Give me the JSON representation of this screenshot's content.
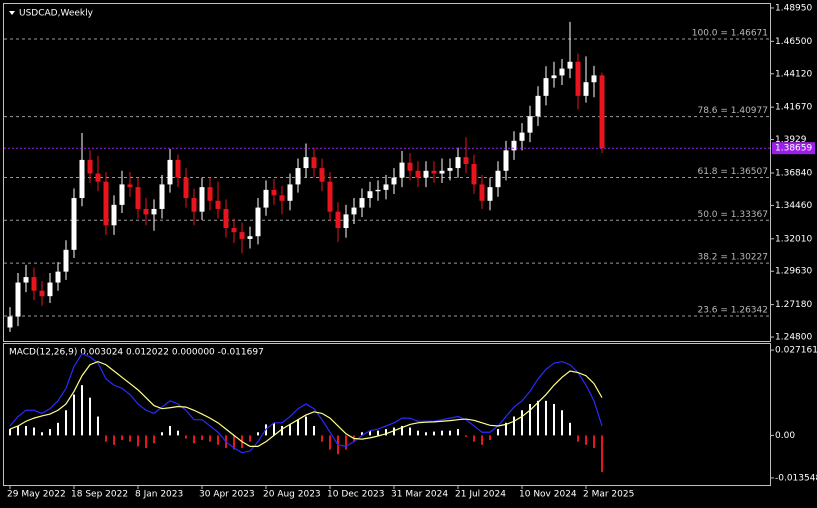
{
  "chart_data": {
    "type": "candlestick",
    "title": "USDCAD,Weekly",
    "categories": [
      "29 May 2022",
      null,
      null,
      null,
      null,
      null,
      null,
      null,
      "18 Sep 2022",
      null,
      null,
      null,
      null,
      null,
      null,
      null,
      "8 Jan 2023",
      null,
      null,
      null,
      null,
      null,
      null,
      null,
      "30 Apr 2023",
      null,
      null,
      null,
      null,
      null,
      null,
      null,
      "20 Aug 2023",
      null,
      null,
      null,
      null,
      null,
      null,
      null,
      "10 Dec 2023",
      null,
      null,
      null,
      null,
      null,
      null,
      null,
      "31 Mar 2024",
      null,
      null,
      null,
      null,
      null,
      null,
      null,
      "21 Jul 2024",
      null,
      null,
      null,
      null,
      null,
      null,
      null,
      "10 Nov 2024",
      null,
      null,
      null,
      null,
      null,
      null,
      null,
      "2 Mar 2025",
      null,
      null
    ],
    "open": [
      1.255,
      1.263,
      1.288,
      1.292,
      1.282,
      1.278,
      1.288,
      1.296,
      1.312,
      1.35,
      1.378,
      1.368,
      1.362,
      1.33,
      1.345,
      1.36,
      1.358,
      1.342,
      1.338,
      1.342,
      1.36,
      1.378,
      1.365,
      1.35,
      1.34,
      1.358,
      1.348,
      1.342,
      1.328,
      1.325,
      1.32,
      1.322,
      1.343,
      1.356,
      1.352,
      1.348,
      1.36,
      1.372,
      1.38,
      1.372,
      1.362,
      1.34,
      1.328,
      1.338,
      1.343,
      1.35,
      1.355,
      1.356,
      1.36,
      1.365,
      1.376,
      1.37,
      1.365,
      1.37,
      1.368,
      1.37,
      1.372,
      1.38,
      1.375,
      1.36,
      1.348,
      1.358,
      1.37,
      1.385,
      1.392,
      1.398,
      1.41,
      1.425,
      1.438,
      1.44,
      1.445,
      1.45,
      1.425,
      1.435,
      1.44
    ],
    "high": [
      1.27,
      1.295,
      1.301,
      1.299,
      1.289,
      1.295,
      1.303,
      1.319,
      1.357,
      1.3977,
      1.385,
      1.381,
      1.369,
      1.352,
      1.37,
      1.369,
      1.365,
      1.35,
      1.349,
      1.367,
      1.386,
      1.382,
      1.372,
      1.357,
      1.365,
      1.365,
      1.362,
      1.349,
      1.335,
      1.332,
      1.329,
      1.35,
      1.363,
      1.364,
      1.359,
      1.368,
      1.379,
      1.39,
      1.387,
      1.379,
      1.369,
      1.347,
      1.345,
      1.35,
      1.357,
      1.362,
      1.363,
      1.367,
      1.372,
      1.3846,
      1.383,
      1.377,
      1.377,
      1.377,
      1.379,
      1.379,
      1.387,
      1.3946,
      1.382,
      1.367,
      1.365,
      1.377,
      1.392,
      1.399,
      1.405,
      1.4177,
      1.432,
      1.4467,
      1.45,
      1.452,
      1.4793,
      1.456,
      1.454,
      1.447,
      1.442
    ],
    "low": [
      1.2518,
      1.256,
      1.281,
      1.275,
      1.271,
      1.273,
      1.282,
      1.29,
      1.306,
      1.344,
      1.361,
      1.355,
      1.323,
      1.323,
      1.339,
      1.351,
      1.335,
      1.33,
      1.326,
      1.335,
      1.354,
      1.358,
      1.343,
      1.33,
      1.334,
      1.341,
      1.335,
      1.321,
      1.317,
      1.3093,
      1.313,
      1.316,
      1.337,
      1.345,
      1.338,
      1.341,
      1.354,
      1.365,
      1.365,
      1.355,
      1.333,
      1.3178,
      1.321,
      1.331,
      1.336,
      1.343,
      1.348,
      1.349,
      1.353,
      1.358,
      1.363,
      1.358,
      1.358,
      1.361,
      1.361,
      1.363,
      1.365,
      1.368,
      1.353,
      1.342,
      1.341,
      1.351,
      1.363,
      1.378,
      1.385,
      1.391,
      1.403,
      1.418,
      1.431,
      1.433,
      1.438,
      1.415,
      1.42,
      1.424,
      1.383
    ],
    "close": [
      1.263,
      1.288,
      1.292,
      1.282,
      1.278,
      1.288,
      1.296,
      1.312,
      1.35,
      1.378,
      1.368,
      1.362,
      1.33,
      1.345,
      1.36,
      1.358,
      1.342,
      1.338,
      1.342,
      1.36,
      1.378,
      1.365,
      1.35,
      1.34,
      1.358,
      1.348,
      1.342,
      1.328,
      1.325,
      1.32,
      1.322,
      1.343,
      1.356,
      1.352,
      1.348,
      1.36,
      1.372,
      1.38,
      1.372,
      1.362,
      1.34,
      1.328,
      1.338,
      1.343,
      1.35,
      1.355,
      1.356,
      1.36,
      1.365,
      1.376,
      1.37,
      1.365,
      1.37,
      1.368,
      1.37,
      1.372,
      1.38,
      1.375,
      1.36,
      1.348,
      1.358,
      1.37,
      1.385,
      1.392,
      1.398,
      1.41,
      1.425,
      1.438,
      1.44,
      1.445,
      1.45,
      1.425,
      1.435,
      1.44,
      1.3866
    ],
    "up_color": "#ffffff",
    "down_color": "#e8141e",
    "ylim": [
      1.2451,
      1.4924
    ],
    "yticks": [
      {
        "value": 1.4895,
        "label": "1.48950"
      },
      {
        "value": 1.465,
        "label": "1.46500"
      },
      {
        "value": 1.4412,
        "label": "1.44120"
      },
      {
        "value": 1.4167,
        "label": "1.41670"
      },
      1.3929,
      {
        "value": 1.3684,
        "label": "1.36840"
      },
      {
        "value": 1.3446,
        "label": "1.34460"
      },
      {
        "value": 1.3201,
        "label": "1.32010"
      },
      {
        "value": 1.2963,
        "label": "1.29630"
      },
      {
        "value": 1.2718,
        "label": "1.27180"
      },
      {
        "value": 1.248,
        "label": "1.24800"
      }
    ],
    "current_price": 1.38659,
    "current_price_color": "#9b1fe8",
    "fibonacci": [
      {
        "label": "100.0 = 1.46671",
        "value": 1.46671
      },
      {
        "label": "78.6 = 1.40977",
        "value": 1.40977
      },
      {
        "label": "61.8 = 1.36507",
        "value": 1.36507
      },
      {
        "label": "50.0 = 1.33367",
        "value": 1.33367
      },
      {
        "label": "38.2 = 1.30227",
        "value": 1.30227
      },
      {
        "label": "23.6 = 1.26342",
        "value": 1.26342
      }
    ],
    "macd": {
      "label": "MACD(12,26,9) 0.003024 0.012022 0.000000 -0.011697",
      "ylim": [
        -0.0158,
        0.0291
      ],
      "yticks": [
        0.027161,
        {
          "value": 0,
          "label": "0.00"
        },
        -0.013548
      ],
      "line_color": "#2a2aff",
      "signal_color": "#ffff88",
      "histogram": [
        0.002,
        0.003,
        0.003,
        0.0025,
        0.001,
        0.002,
        0.004,
        0.008,
        0.013,
        0.016,
        0.012,
        0.006,
        -0.002,
        -0.003,
        -0.0015,
        -0.002,
        -0.0035,
        -0.004,
        -0.0025,
        0.001,
        0.003,
        0.0015,
        -0.001,
        -0.0025,
        -0.0015,
        -0.002,
        -0.003,
        -0.004,
        -0.0045,
        -0.004,
        -0.002,
        0.001,
        0.0035,
        0.004,
        0.003,
        0.0035,
        0.005,
        0.006,
        0.003,
        -0.002,
        -0.0045,
        -0.006,
        -0.0045,
        -0.002,
        0.001,
        0.0015,
        0.0015,
        0.002,
        0.0025,
        0.003,
        0.0025,
        0.0015,
        0.001,
        0.0012,
        0.0015,
        0.0015,
        0.002,
        -0.0005,
        -0.002,
        -0.003,
        -0.0015,
        0.002,
        0.004,
        0.006,
        0.008,
        0.01,
        0.011,
        0.011,
        0.01,
        0.008,
        0.004,
        -0.002,
        -0.003,
        -0.004,
        -0.011697
      ],
      "line": [
        0.003,
        0.006,
        0.008,
        0.008,
        0.007,
        0.0085,
        0.011,
        0.015,
        0.022,
        0.026,
        0.025,
        0.023,
        0.018,
        0.016,
        0.015,
        0.013,
        0.01,
        0.008,
        0.007,
        0.009,
        0.011,
        0.01,
        0.008,
        0.005,
        0.005,
        0.003,
        0.001,
        -0.002,
        -0.004,
        -0.0055,
        -0.005,
        -0.002,
        0.002,
        0.004,
        0.004,
        0.006,
        0.0085,
        0.01,
        0.0085,
        0.005,
        0.001,
        -0.003,
        -0.0035,
        -0.002,
        0.0,
        0.0015,
        0.002,
        0.003,
        0.004,
        0.0055,
        0.0055,
        0.0045,
        0.0045,
        0.0045,
        0.005,
        0.0055,
        0.006,
        0.005,
        0.003,
        0.001,
        0.001,
        0.003,
        0.006,
        0.009,
        0.011,
        0.014,
        0.018,
        0.021,
        0.023,
        0.0235,
        0.0225,
        0.02,
        0.016,
        0.011,
        0.003024
      ],
      "signal": [
        0.002,
        0.003,
        0.0045,
        0.0055,
        0.0062,
        0.0068,
        0.008,
        0.01,
        0.014,
        0.019,
        0.0225,
        0.0235,
        0.0225,
        0.0205,
        0.0185,
        0.0165,
        0.0145,
        0.012,
        0.0095,
        0.0085,
        0.0088,
        0.0092,
        0.009,
        0.008,
        0.0068,
        0.0055,
        0.004,
        0.002,
        0.0,
        -0.002,
        -0.0035,
        -0.0035,
        -0.002,
        0.0,
        0.002,
        0.0035,
        0.005,
        0.0065,
        0.0075,
        0.007,
        0.0055,
        0.003,
        0.0005,
        -0.001,
        -0.0012,
        -0.0008,
        -0.0002,
        0.0005,
        0.0015,
        0.0025,
        0.0035,
        0.004,
        0.0042,
        0.0043,
        0.0045,
        0.0047,
        0.005,
        0.0052,
        0.0048,
        0.004,
        0.0032,
        0.003,
        0.0035,
        0.0045,
        0.006,
        0.008,
        0.0105,
        0.013,
        0.016,
        0.0185,
        0.0205,
        0.02,
        0.019,
        0.0165,
        0.012022
      ]
    }
  }
}
